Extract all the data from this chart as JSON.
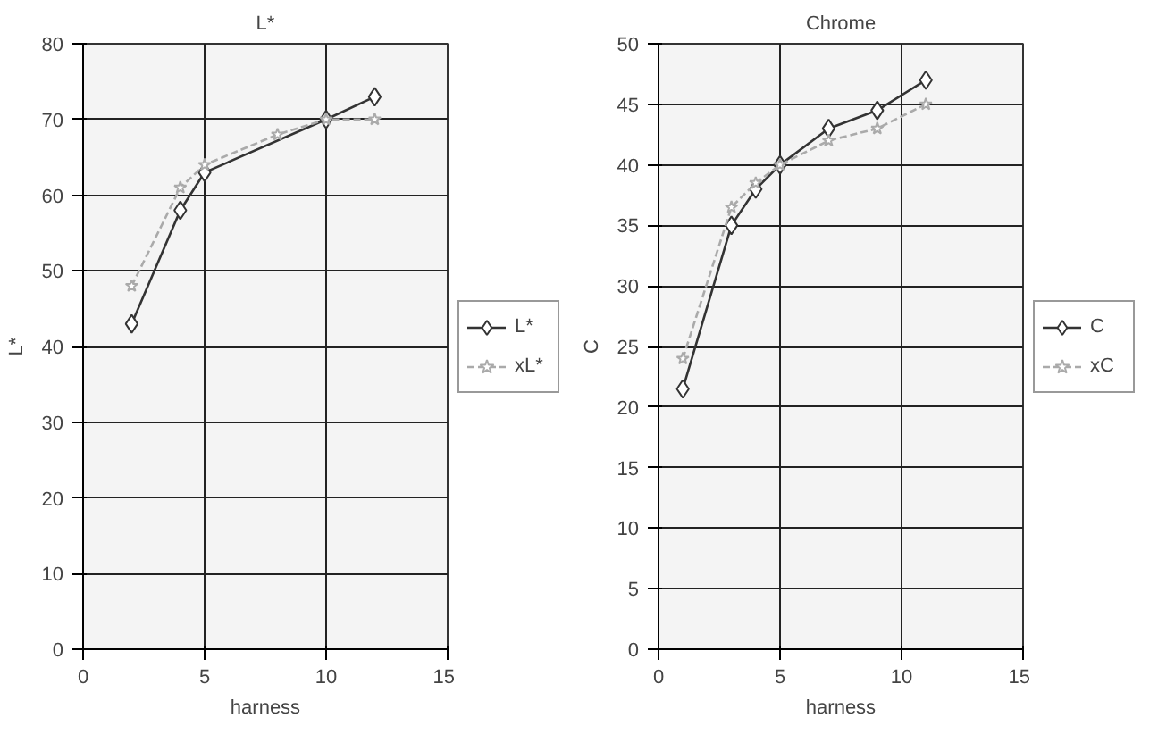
{
  "chart_data": [
    {
      "type": "line",
      "title": "L*",
      "xlabel": "harness",
      "ylabel": "L*",
      "xlim": [
        0,
        15
      ],
      "xticks": [
        0,
        5,
        10,
        15
      ],
      "ylim": [
        0,
        80
      ],
      "yticks": [
        0,
        10,
        20,
        30,
        40,
        50,
        60,
        70,
        80
      ],
      "grid": true,
      "legend": "right",
      "series": [
        {
          "name": "L*",
          "color": "#333333",
          "marker": "diamond",
          "line_style": "solid",
          "x": [
            2,
            4,
            5,
            10,
            12
          ],
          "values": [
            43,
            58,
            63,
            70,
            73
          ]
        },
        {
          "name": "xL*",
          "color": "#aaaaaa",
          "marker": "star",
          "line_style": "dashed",
          "x": [
            2,
            4,
            5,
            8,
            10,
            12
          ],
          "values": [
            48,
            61,
            64,
            68,
            70,
            70
          ]
        }
      ]
    },
    {
      "type": "line",
      "title": "Chrome",
      "xlabel": "harness",
      "ylabel": "C",
      "xlim": [
        0,
        15
      ],
      "xticks": [
        0,
        5,
        10,
        15
      ],
      "ylim": [
        0,
        50
      ],
      "yticks": [
        0,
        5,
        10,
        15,
        20,
        25,
        30,
        35,
        40,
        45,
        50
      ],
      "grid": true,
      "legend": "right",
      "series": [
        {
          "name": "C",
          "color": "#333333",
          "marker": "diamond",
          "line_style": "solid",
          "x": [
            1,
            3,
            4,
            5,
            7,
            9,
            11
          ],
          "values": [
            21.5,
            35,
            38,
            40,
            43,
            44.5,
            47
          ]
        },
        {
          "name": "xC",
          "color": "#aaaaaa",
          "marker": "star",
          "line_style": "dashed",
          "x": [
            1,
            3,
            4,
            5,
            7,
            9,
            11
          ],
          "values": [
            24,
            36.5,
            38.5,
            40,
            42,
            43,
            45
          ]
        }
      ]
    }
  ]
}
